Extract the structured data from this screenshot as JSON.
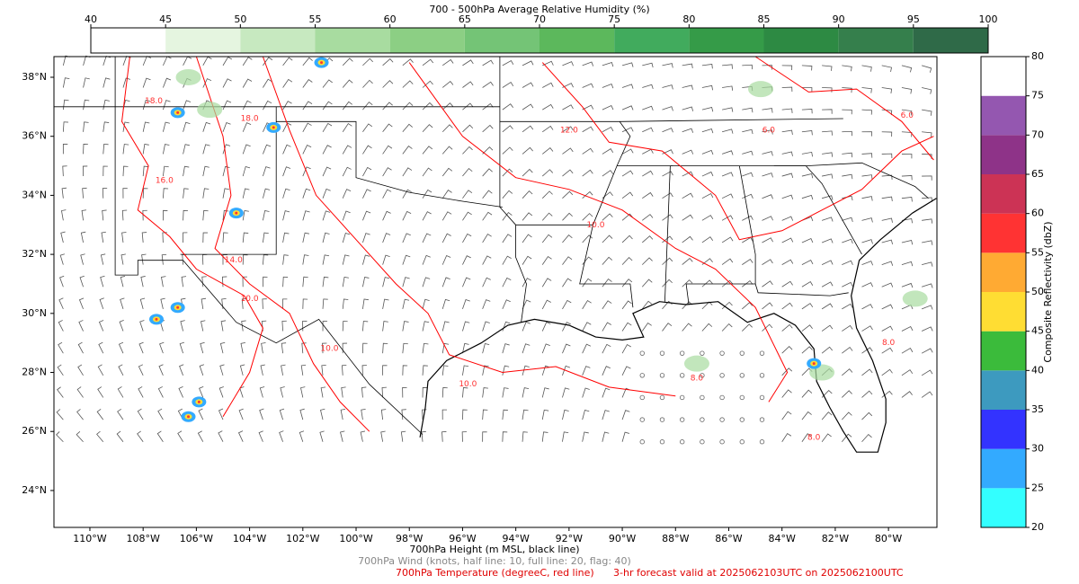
{
  "title": "700 - 500hPa Average Relative Humidity (%)",
  "humidity_colorbar": {
    "ticks": [
      40,
      45,
      50,
      55,
      60,
      65,
      70,
      75,
      80,
      85,
      90,
      95,
      100
    ],
    "colors": [
      "#ffffff",
      "#e5f5e0",
      "#c7e9c0",
      "#a8dca0",
      "#8ccf84",
      "#74c476",
      "#5cb85c",
      "#41ab5d",
      "#359b48",
      "#2d8a43",
      "#357f4c",
      "#2f6a48"
    ]
  },
  "reflectivity_colorbar": {
    "label": "Composite Reflectivity (dbZ)",
    "ticks": [
      20,
      25,
      30,
      35,
      40,
      45,
      50,
      55,
      60,
      65,
      70,
      75,
      80
    ],
    "colors": [
      "#33ffff",
      "#33aaff",
      "#3333ff",
      "#3d9abf",
      "#3bbb3b",
      "#ffdd33",
      "#ffaa33",
      "#ff3333",
      "#cc3355",
      "#8e3388",
      "#9457b0",
      "#ffffff"
    ]
  },
  "map": {
    "xlim": [
      -111.35,
      -78.18
    ],
    "ylim": [
      22.75,
      38.7
    ],
    "xticks": [
      {
        "value": -110,
        "label": "110°W"
      },
      {
        "value": -108,
        "label": "108°W"
      },
      {
        "value": -106,
        "label": "106°W"
      },
      {
        "value": -104,
        "label": "104°W"
      },
      {
        "value": -102,
        "label": "102°W"
      },
      {
        "value": -100,
        "label": "100°W"
      },
      {
        "value": -98,
        "label": "98°W"
      },
      {
        "value": -96,
        "label": "96°W"
      },
      {
        "value": -94,
        "label": "94°W"
      },
      {
        "value": -92,
        "label": "92°W"
      },
      {
        "value": -90,
        "label": "90°W"
      },
      {
        "value": -88,
        "label": "88°W"
      },
      {
        "value": -86,
        "label": "86°W"
      },
      {
        "value": -84,
        "label": "84°W"
      },
      {
        "value": -82,
        "label": "82°W"
      },
      {
        "value": -80,
        "label": "80°W"
      }
    ],
    "yticks": [
      {
        "value": 24,
        "label": "24°N"
      },
      {
        "value": 26,
        "label": "26°N"
      },
      {
        "value": 28,
        "label": "28°N"
      },
      {
        "value": 30,
        "label": "30°N"
      },
      {
        "value": 32,
        "label": "32°N"
      },
      {
        "value": 34,
        "label": "34°N"
      },
      {
        "value": 36,
        "label": "36°N"
      },
      {
        "value": 38,
        "label": "38°N"
      }
    ],
    "contour_labels": [
      "18.0",
      "18.0",
      "16.0",
      "14.0",
      "10.0",
      "10.0",
      "10.0",
      "12.0",
      "10.0",
      "8.0",
      "8.0",
      "6.0",
      "8.0",
      "6.0"
    ]
  },
  "captions": {
    "height": "700hPa Height (m MSL, black line)",
    "wind": "700hPa Wind (knots, half line: 10, full line: 20, flag: 40)",
    "temperature": "700hPa Temperature (degreeC, red line)",
    "forecast": "3-hr forecast valid at 2025062103UTC on 2025062100UTC"
  }
}
